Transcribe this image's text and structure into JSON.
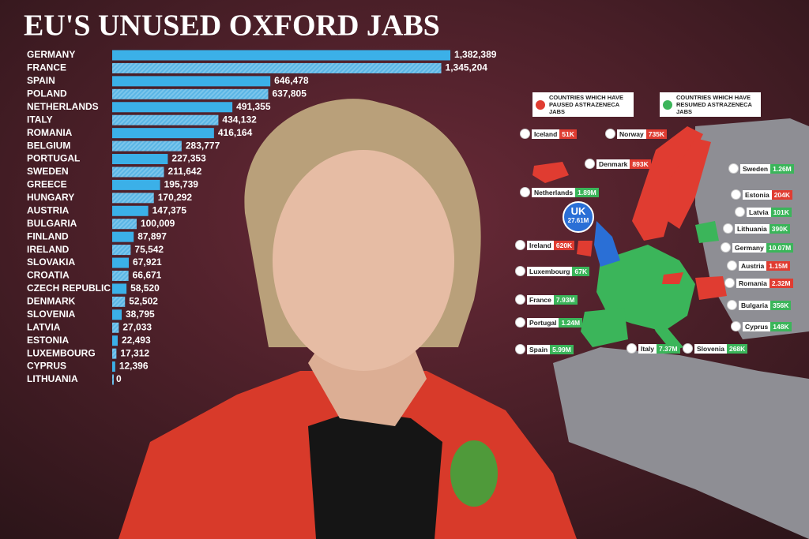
{
  "chart_data": {
    "type": "bar",
    "orientation": "horizontal",
    "title": "EU'S UNUSED OXFORD JABS",
    "categories": [
      "GERMANY",
      "FRANCE",
      "SPAIN",
      "POLAND",
      "NETHERLANDS",
      "ITALY",
      "ROMANIA",
      "BELGIUM",
      "PORTUGAL",
      "SWEDEN",
      "GREECE",
      "HUNGARY",
      "AUSTRIA",
      "BULGARIA",
      "FINLAND",
      "IRELAND",
      "SLOVAKIA",
      "CROATIA",
      "CZECH REPUBLIC",
      "DENMARK",
      "SLOVENIA",
      "LATVIA",
      "ESTONIA",
      "LUXEMBOURG",
      "CYPRUS",
      "LITHUANIA"
    ],
    "values": [
      1382389,
      1345204,
      646478,
      637805,
      491355,
      434132,
      416164,
      283777,
      227353,
      211642,
      195739,
      170292,
      147375,
      100009,
      87897,
      75542,
      67921,
      66671,
      58520,
      52502,
      38795,
      27033,
      22493,
      17312,
      12396,
      0
    ],
    "value_labels": [
      "1,382,389",
      "1,345,204",
      "646,478",
      "637,805",
      "491,355",
      "434,132",
      "416,164",
      "283,777",
      "227,353",
      "211,642",
      "195,739",
      "170,292",
      "147,375",
      "100,009",
      "87,897",
      "75,542",
      "67,921",
      "66,671",
      "58,520",
      "52,502",
      "38,795",
      "27,033",
      "22,493",
      "17,312",
      "12,396",
      "0"
    ],
    "color": "#3bb0e8",
    "xlim": [
      0,
      1400000
    ],
    "map": {
      "legend": [
        {
          "text": "COUNTRIES WHICH HAVE PAUSED ASTRAZENECA JABS",
          "color": "#e03c31"
        },
        {
          "text": "COUNTRIES WHICH HAVE RESUMED ASTRAZENECA JABS",
          "color": "#3bb55a"
        }
      ],
      "labels": [
        {
          "name": "Iceland",
          "value": "51K",
          "color": "#e03c31"
        },
        {
          "name": "Norway",
          "value": "735K",
          "color": "#e03c31"
        },
        {
          "name": "Denmark",
          "value": "893K",
          "color": "#e03c31"
        },
        {
          "name": "Sweden",
          "value": "1.26M",
          "color": "#3bb55a"
        },
        {
          "name": "Netherlands",
          "value": "1.89M",
          "color": "#3bb55a"
        },
        {
          "name": "Estonia",
          "value": "204K",
          "color": "#e03c31"
        },
        {
          "name": "Latvia",
          "value": "101K",
          "color": "#3bb55a"
        },
        {
          "name": "UK",
          "value": "27.61M",
          "color": "#2a6fd6"
        },
        {
          "name": "Lithuania",
          "value": "390K",
          "color": "#3bb55a"
        },
        {
          "name": "Ireland",
          "value": "620K",
          "color": "#e03c31"
        },
        {
          "name": "Germany",
          "value": "10.07M",
          "color": "#3bb55a"
        },
        {
          "name": "Luxembourg",
          "value": "67K",
          "color": "#3bb55a"
        },
        {
          "name": "Austria",
          "value": "1.15M",
          "color": "#e03c31"
        },
        {
          "name": "Romania",
          "value": "2.32M",
          "color": "#e03c31"
        },
        {
          "name": "France",
          "value": "7.93M",
          "color": "#3bb55a"
        },
        {
          "name": "Bulgaria",
          "value": "356K",
          "color": "#3bb55a"
        },
        {
          "name": "Portugal",
          "value": "1.24M",
          "color": "#3bb55a"
        },
        {
          "name": "Cyprus",
          "value": "148K",
          "color": "#3bb55a"
        },
        {
          "name": "Spain",
          "value": "5.99M",
          "color": "#3bb55a"
        },
        {
          "name": "Italy",
          "value": "7.37M",
          "color": "#3bb55a"
        },
        {
          "name": "Slovenia",
          "value": "268K",
          "color": "#3bb55a"
        }
      ]
    }
  }
}
